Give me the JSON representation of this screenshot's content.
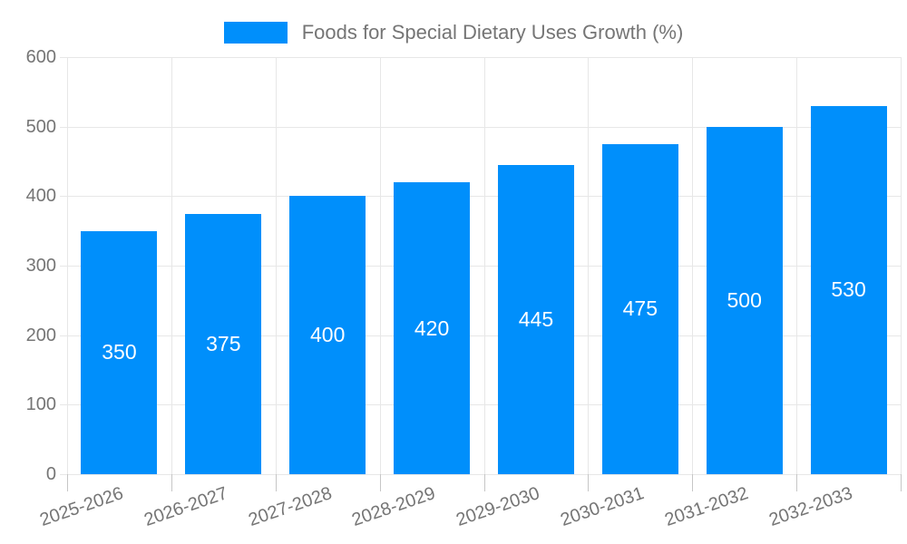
{
  "chart_data": {
    "type": "bar",
    "title": "Foods for Special Dietary Uses Growth (%)",
    "categories": [
      "2025-2026",
      "2026-2027",
      "2027-2028",
      "2028-2029",
      "2029-2030",
      "2030-2031",
      "2031-2032",
      "2032-2033"
    ],
    "values": [
      350,
      375,
      400,
      420,
      445,
      475,
      500,
      530
    ],
    "xlabel": "",
    "ylabel": "",
    "ylim": [
      0,
      600
    ],
    "yticks": [
      0,
      100,
      200,
      300,
      400,
      500,
      600
    ],
    "grid": true,
    "legend_position": "top",
    "data_labels": "centered-in-bar"
  },
  "colors": {
    "bar": "#008FFB",
    "data_label": "#ffffff",
    "axis_label": "#757575",
    "legend_text": "#757575",
    "gridline": "#e7e7e7",
    "y_axis_line": "#a6a6a6",
    "x_axis_line": "#b6b6b6",
    "background": "#ffffff"
  }
}
